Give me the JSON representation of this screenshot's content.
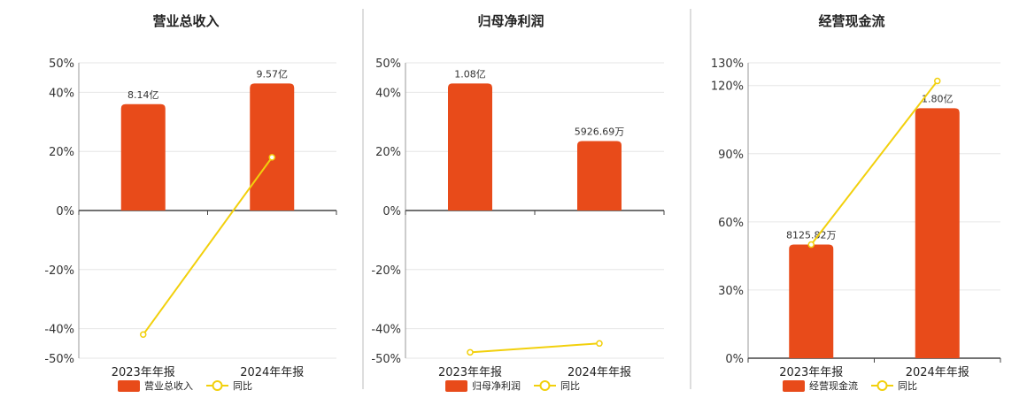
{
  "colors": {
    "bar": "#E84B1A",
    "line": "#F2D00C",
    "grid": "#E6E6E6",
    "axis": "#444444",
    "divider": "#BBBBBB"
  },
  "chart_data": [
    {
      "type": "bar",
      "title": "营业总收入",
      "categories": [
        "2023年年报",
        "2024年年报"
      ],
      "yticks": [
        "50%",
        "40%",
        "20%",
        "0%",
        "-20%",
        "-40%",
        "-50%"
      ],
      "ylim": [
        -50,
        50
      ],
      "series": [
        {
          "name": "营业总收入",
          "type": "bar",
          "values": [
            36,
            43
          ],
          "labels": [
            "8.14亿",
            "9.57亿"
          ]
        },
        {
          "name": "同比",
          "type": "line",
          "values": [
            -42,
            18
          ]
        }
      ]
    },
    {
      "type": "bar",
      "title": "归母净利润",
      "categories": [
        "2023年年报",
        "2024年年报"
      ],
      "yticks": [
        "50%",
        "40%",
        "20%",
        "0%",
        "-20%",
        "-40%",
        "-50%"
      ],
      "ylim": [
        -50,
        50
      ],
      "series": [
        {
          "name": "归母净利润",
          "type": "bar",
          "values": [
            43,
            23.5
          ],
          "labels": [
            "1.08亿",
            "5926.69万"
          ]
        },
        {
          "name": "同比",
          "type": "line",
          "values": [
            -48,
            -45
          ]
        }
      ]
    },
    {
      "type": "bar",
      "title": "经营现金流",
      "categories": [
        "2023年年报",
        "2024年年报"
      ],
      "yticks": [
        "130%",
        "120%",
        "90%",
        "60%",
        "30%",
        "0%"
      ],
      "ylim": [
        0,
        130
      ],
      "series": [
        {
          "name": "经营现金流",
          "type": "bar",
          "values": [
            50,
            110
          ],
          "labels": [
            "8125.82万",
            "1.80亿"
          ]
        },
        {
          "name": "同比",
          "type": "line",
          "values": [
            50,
            122
          ]
        }
      ]
    }
  ]
}
